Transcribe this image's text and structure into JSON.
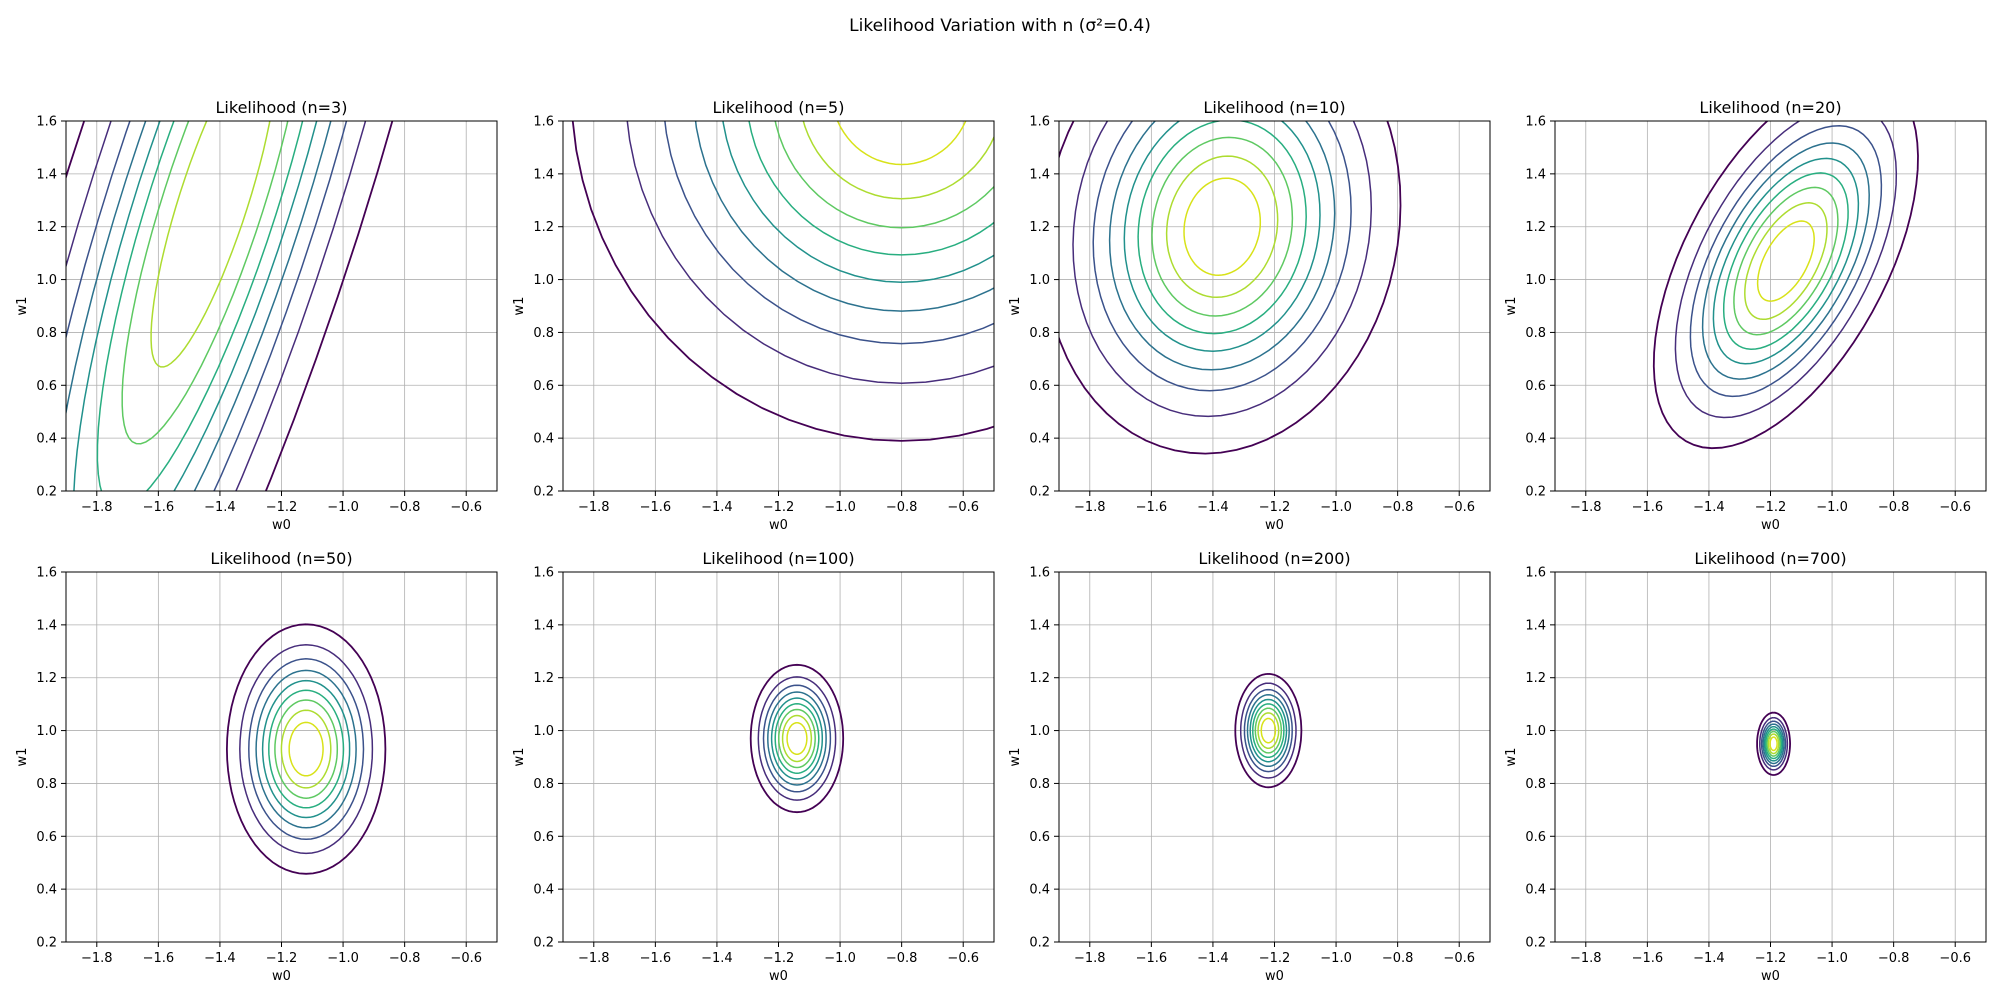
{
  "suptitle": "Likelihood Variation with n (σ²=0.4)",
  "chart_data": [
    {
      "type": "contour",
      "title": "Likelihood (n=3)",
      "xlabel": "w0",
      "ylabel": "w1",
      "xlim": [
        -1.9,
        -0.5
      ],
      "ylim": [
        0.2,
        1.6
      ],
      "xticks": [
        -1.8,
        -1.6,
        -1.4,
        -1.2,
        -1.0,
        -0.8,
        -0.6
      ],
      "yticks": [
        0.2,
        0.4,
        0.6,
        0.8,
        1.0,
        1.2,
        1.4,
        1.6
      ],
      "grid": true,
      "center": [
        -1.42,
        1.3
      ],
      "sx": 0.42,
      "sy": 1.3,
      "rho": 0.82,
      "levels": 8
    },
    {
      "type": "contour",
      "title": "Likelihood (n=5)",
      "xlabel": "w0",
      "ylabel": "w1",
      "xlim": [
        -1.9,
        -0.5
      ],
      "ylim": [
        0.2,
        1.6
      ],
      "xticks": [
        -1.8,
        -1.6,
        -1.4,
        -1.2,
        -1.0,
        -0.8,
        -0.6
      ],
      "yticks": [
        0.2,
        0.4,
        0.6,
        0.8,
        1.0,
        1.2,
        1.4,
        1.6
      ],
      "grid": true,
      "center": [
        -0.8,
        1.72
      ],
      "sx": 0.5,
      "sy": 0.62,
      "rho": 0.0,
      "levels": 9
    },
    {
      "type": "contour",
      "title": "Likelihood (n=10)",
      "xlabel": "w0",
      "ylabel": "w1",
      "xlim": [
        -1.9,
        -0.5
      ],
      "ylim": [
        0.2,
        1.6
      ],
      "xticks": [
        -1.8,
        -1.6,
        -1.4,
        -1.2,
        -1.0,
        -0.8,
        -0.6
      ],
      "yticks": [
        0.2,
        0.4,
        0.6,
        0.8,
        1.0,
        1.2,
        1.4,
        1.6
      ],
      "grid": true,
      "center": [
        -1.37,
        1.2
      ],
      "sx": 0.27,
      "sy": 0.4,
      "rho": 0.1,
      "levels": 9
    },
    {
      "type": "contour",
      "title": "Likelihood (n=20)",
      "xlabel": "w0",
      "ylabel": "w1",
      "xlim": [
        -1.9,
        -0.5
      ],
      "ylim": [
        0.2,
        1.6
      ],
      "xticks": [
        -1.8,
        -1.6,
        -1.4,
        -1.2,
        -1.0,
        -0.8,
        -0.6
      ],
      "yticks": [
        0.2,
        0.4,
        0.6,
        0.8,
        1.0,
        1.2,
        1.4,
        1.6
      ],
      "grid": true,
      "center": [
        -1.15,
        1.07
      ],
      "sx": 0.2,
      "sy": 0.33,
      "rho": 0.55,
      "levels": 9
    },
    {
      "type": "contour",
      "title": "Likelihood (n=50)",
      "xlabel": "w0",
      "ylabel": "w1",
      "xlim": [
        -1.9,
        -0.5
      ],
      "ylim": [
        0.2,
        1.6
      ],
      "xticks": [
        -1.8,
        -1.6,
        -1.4,
        -1.2,
        -1.0,
        -0.8,
        -0.6
      ],
      "yticks": [
        0.2,
        0.4,
        0.6,
        0.8,
        1.0,
        1.2,
        1.4,
        1.6
      ],
      "grid": true,
      "center": [
        -1.12,
        0.93
      ],
      "sx": 0.12,
      "sy": 0.22,
      "rho": 0.0,
      "levels": 9
    },
    {
      "type": "contour",
      "title": "Likelihood (n=100)",
      "xlabel": "w0",
      "ylabel": "w1",
      "xlim": [
        -1.9,
        -0.5
      ],
      "ylim": [
        0.2,
        1.6
      ],
      "xticks": [
        -1.8,
        -1.6,
        -1.4,
        -1.2,
        -1.0,
        -0.8,
        -0.6
      ],
      "yticks": [
        0.2,
        0.4,
        0.6,
        0.8,
        1.0,
        1.2,
        1.4,
        1.6
      ],
      "grid": true,
      "center": [
        -1.14,
        0.97
      ],
      "sx": 0.07,
      "sy": 0.13,
      "rho": 0.0,
      "levels": 9
    },
    {
      "type": "contour",
      "title": "Likelihood (n=200)",
      "xlabel": "w0",
      "ylabel": "w1",
      "xlim": [
        -1.9,
        -0.5
      ],
      "ylim": [
        0.2,
        1.6
      ],
      "xticks": [
        -1.8,
        -1.6,
        -1.4,
        -1.2,
        -1.0,
        -0.8,
        -0.6
      ],
      "yticks": [
        0.2,
        0.4,
        0.6,
        0.8,
        1.0,
        1.2,
        1.4,
        1.6
      ],
      "grid": true,
      "center": [
        -1.22,
        1.0
      ],
      "sx": 0.05,
      "sy": 0.1,
      "rho": 0.0,
      "levels": 9
    },
    {
      "type": "contour",
      "title": "Likelihood (n=700)",
      "xlabel": "w0",
      "ylabel": "w1",
      "xlim": [
        -1.9,
        -0.5
      ],
      "ylim": [
        0.2,
        1.6
      ],
      "xticks": [
        -1.8,
        -1.6,
        -1.4,
        -1.2,
        -1.0,
        -0.8,
        -0.6
      ],
      "yticks": [
        0.2,
        0.4,
        0.6,
        0.8,
        1.0,
        1.2,
        1.4,
        1.6
      ],
      "grid": true,
      "center": [
        -1.19,
        0.95
      ],
      "sx": 0.025,
      "sy": 0.055,
      "rho": 0.0,
      "levels": 9
    }
  ],
  "colors": [
    "#440154",
    "#472d7b",
    "#3b528b",
    "#2c728e",
    "#21918c",
    "#28ae80",
    "#5ec962",
    "#addc30",
    "#d8e219"
  ]
}
